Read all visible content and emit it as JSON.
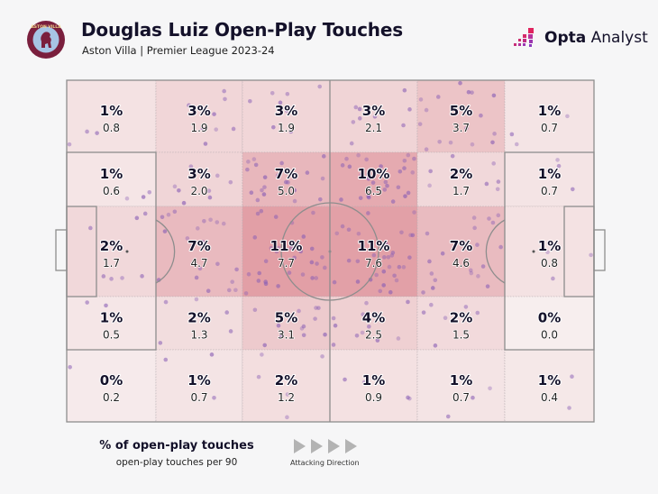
{
  "header": {
    "title": "Douglas Luiz Open-Play Touches",
    "subtitle": "Aston Villa | Premier League 2023-24",
    "crest_label": "ASTON VILLA",
    "brand_bold": "Opta",
    "brand_light": "Analyst"
  },
  "legend": {
    "title": "% of open-play touches",
    "subtitle": "open-play touches per 90",
    "direction_label": "Attacking Direction",
    "arrow_count": 4
  },
  "colors": {
    "heat_low": "#f7eeee",
    "heat_high": "#e29fa6",
    "touch_dot": "#8a5fb5",
    "pitch_line": "#8d8d8d",
    "text_dark": "#14112a",
    "crest_claret": "#7a1f3d",
    "crest_blue": "#a7c4e4"
  },
  "chart_data": {
    "type": "heatmap",
    "title": "Douglas Luiz Open-Play Touches",
    "subtitle": "Aston Villa | Premier League 2023-24",
    "description": "Pitch divided into 6 columns (own goal left → attacking right) × 5 rows (top → bottom)",
    "attacking_direction": "left-to-right",
    "columns": 6,
    "rows": 5,
    "value_labels": {
      "primary": "% of open-play touches",
      "secondary": "open-play touches per 90"
    },
    "cells": [
      [
        {
          "pct": "1%",
          "p90": "0.8"
        },
        {
          "pct": "3%",
          "p90": "1.9"
        },
        {
          "pct": "3%",
          "p90": "1.9"
        },
        {
          "pct": "3%",
          "p90": "2.1"
        },
        {
          "pct": "5%",
          "p90": "3.7"
        },
        {
          "pct": "1%",
          "p90": "0.7"
        }
      ],
      [
        {
          "pct": "1%",
          "p90": "0.6"
        },
        {
          "pct": "3%",
          "p90": "2.0"
        },
        {
          "pct": "7%",
          "p90": "5.0"
        },
        {
          "pct": "10%",
          "p90": "6.5"
        },
        {
          "pct": "2%",
          "p90": "1.7"
        },
        {
          "pct": "1%",
          "p90": "0.7"
        }
      ],
      [
        {
          "pct": "2%",
          "p90": "1.7"
        },
        {
          "pct": "7%",
          "p90": "4.7"
        },
        {
          "pct": "11%",
          "p90": "7.7"
        },
        {
          "pct": "11%",
          "p90": "7.6"
        },
        {
          "pct": "7%",
          "p90": "4.6"
        },
        {
          "pct": "1%",
          "p90": "0.8"
        }
      ],
      [
        {
          "pct": "1%",
          "p90": "0.5"
        },
        {
          "pct": "2%",
          "p90": "1.3"
        },
        {
          "pct": "5%",
          "p90": "3.1"
        },
        {
          "pct": "4%",
          "p90": "2.5"
        },
        {
          "pct": "2%",
          "p90": "1.5"
        },
        {
          "pct": "0%",
          "p90": "0.0"
        }
      ],
      [
        {
          "pct": "0%",
          "p90": "0.2"
        },
        {
          "pct": "1%",
          "p90": "0.7"
        },
        {
          "pct": "2%",
          "p90": "1.2"
        },
        {
          "pct": "1%",
          "p90": "0.9"
        },
        {
          "pct": "1%",
          "p90": "0.7"
        },
        {
          "pct": "1%",
          "p90": "0.4"
        }
      ]
    ],
    "p90_max": 7.7
  }
}
